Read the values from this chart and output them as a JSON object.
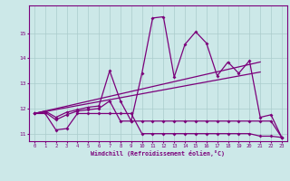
{
  "x": [
    0,
    1,
    2,
    3,
    4,
    5,
    6,
    7,
    8,
    9,
    10,
    11,
    12,
    13,
    14,
    15,
    16,
    17,
    18,
    19,
    20,
    21,
    22,
    23
  ],
  "line_main": [
    11.8,
    11.9,
    11.65,
    11.85,
    11.95,
    12.05,
    12.1,
    13.5,
    12.3,
    11.5,
    13.4,
    15.6,
    15.65,
    13.25,
    14.55,
    15.05,
    14.6,
    13.3,
    13.85,
    13.4,
    13.9,
    11.65,
    11.75,
    10.85
  ],
  "line_smooth": [
    11.8,
    11.85,
    11.55,
    11.75,
    11.9,
    11.95,
    12.0,
    12.3,
    11.5,
    11.5,
    11.5,
    11.5,
    11.5,
    11.5,
    11.5,
    11.5,
    11.5,
    11.5,
    11.5,
    11.5,
    11.5,
    11.5,
    11.5,
    10.85
  ],
  "line_flat": [
    11.8,
    11.8,
    11.15,
    11.2,
    11.8,
    11.8,
    11.8,
    11.8,
    11.8,
    11.8,
    11.0,
    11.0,
    11.0,
    11.0,
    11.0,
    11.0,
    11.0,
    11.0,
    11.0,
    11.0,
    11.0,
    10.9,
    10.9,
    10.85
  ],
  "trend1_x": [
    0,
    21
  ],
  "trend1_y": [
    11.8,
    13.85
  ],
  "trend2_x": [
    0,
    21
  ],
  "trend2_y": [
    11.8,
    13.45
  ],
  "background": "#cce8e8",
  "grid_color": "#aacccc",
  "line_color": "#7b007b",
  "xlabel": "Windchill (Refroidissement éolien,°C)",
  "ylim": [
    10.7,
    16.1
  ],
  "xlim": [
    -0.5,
    23.5
  ],
  "yticks": [
    11,
    12,
    13,
    14,
    15
  ],
  "xticks": [
    0,
    1,
    2,
    3,
    4,
    5,
    6,
    7,
    8,
    9,
    10,
    11,
    12,
    13,
    14,
    15,
    16,
    17,
    18,
    19,
    20,
    21,
    22,
    23
  ]
}
